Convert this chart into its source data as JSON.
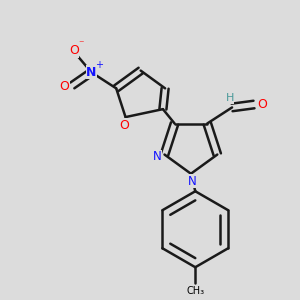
{
  "bg_color": "#dcdcdc",
  "bond_color": "#1a1a1a",
  "bond_width": 1.8,
  "dbo": 0.012,
  "atom_colors": {
    "C": "#000000",
    "N": "#1414ff",
    "O": "#ff0000",
    "H": "#4a9999"
  },
  "figsize": [
    3.0,
    3.0
  ],
  "dpi": 100,
  "xlim": [
    0.0,
    1.0
  ],
  "ylim": [
    0.0,
    1.0
  ]
}
